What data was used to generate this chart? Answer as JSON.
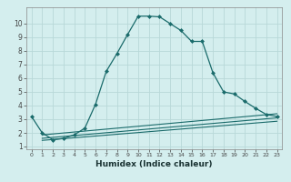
{
  "xlabel": "Humidex (Indice chaleur)",
  "background_color": "#d4eeee",
  "grid_color": "#b8d8d8",
  "line_color": "#1a6b6b",
  "xlim": [
    -0.5,
    23.5
  ],
  "ylim": [
    0.8,
    11.2
  ],
  "xticks": [
    0,
    1,
    2,
    3,
    4,
    5,
    6,
    7,
    8,
    9,
    10,
    11,
    12,
    13,
    14,
    15,
    16,
    17,
    18,
    19,
    20,
    21,
    22,
    23
  ],
  "yticks": [
    1,
    2,
    3,
    4,
    5,
    6,
    7,
    8,
    9,
    10
  ],
  "series1_x": [
    0,
    1,
    2,
    3,
    4,
    5,
    6,
    7,
    8,
    9,
    10,
    11,
    12,
    13,
    14,
    15,
    16,
    17,
    18,
    19,
    20,
    21,
    22,
    23
  ],
  "series1_y": [
    3.2,
    2.0,
    1.5,
    1.6,
    1.85,
    2.35,
    4.1,
    6.5,
    7.8,
    9.2,
    10.55,
    10.55,
    10.5,
    10.0,
    9.5,
    8.7,
    8.7,
    6.4,
    5.0,
    4.85,
    4.3,
    3.8,
    3.35,
    3.2
  ],
  "series2_x": [
    1,
    23
  ],
  "series2_y": [
    1.85,
    3.4
  ],
  "series3_x": [
    1,
    23
  ],
  "series3_y": [
    1.6,
    3.1
  ],
  "series4_x": [
    1,
    23
  ],
  "series4_y": [
    1.45,
    2.85
  ]
}
